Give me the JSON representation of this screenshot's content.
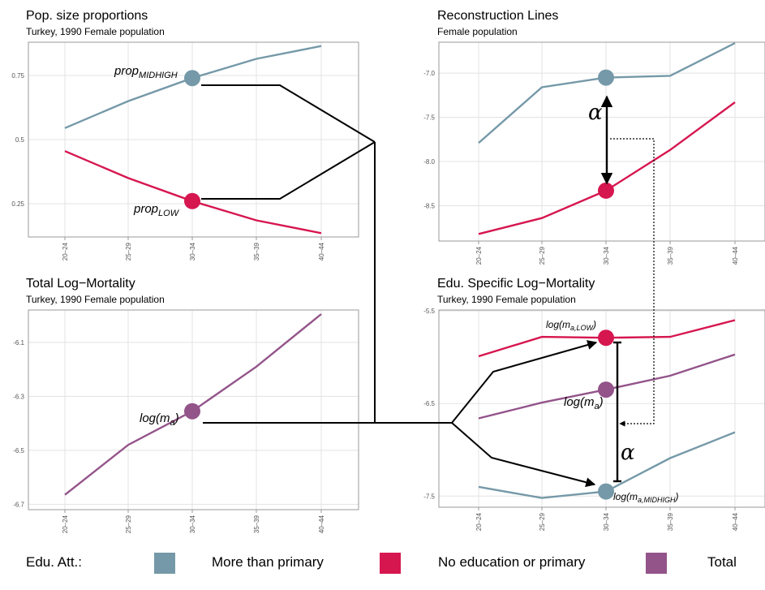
{
  "chart_data": [
    {
      "id": "pop",
      "type": "line",
      "title": "Pop. size proportions",
      "subtitle": "Turkey, 1990 Female population",
      "categories": [
        "20–24",
        "25–29",
        "30–34",
        "35–39",
        "40–44"
      ],
      "ylim": [
        0.12,
        0.88
      ],
      "yticks": [
        0.25,
        0.5,
        0.75
      ],
      "ytick_labels": [
        "0.25",
        "0.5",
        "0.75"
      ],
      "grid": true,
      "series": [
        {
          "key": "midhigh",
          "color": "#7599a8",
          "values": [
            0.545,
            0.65,
            0.74,
            0.815,
            0.865
          ]
        },
        {
          "key": "low",
          "color": "#d6164f",
          "values": [
            0.455,
            0.35,
            0.26,
            0.185,
            0.135
          ]
        }
      ],
      "highlight_index": 2,
      "annotations": {
        "midhigh": "prop_MIDHIGH",
        "low": "prop_LOW"
      }
    },
    {
      "id": "recon",
      "type": "line",
      "title": "Reconstruction Lines",
      "subtitle": "Female population",
      "categories": [
        "20–24",
        "25–29",
        "30–34",
        "35–39",
        "40–44"
      ],
      "ylim": [
        -8.9,
        -6.65
      ],
      "yticks": [
        -7.0,
        -7.5,
        -8.0,
        -8.5
      ],
      "ytick_labels": [
        "-7.0",
        "-7.5",
        "-8.0",
        "-8.5"
      ],
      "grid": true,
      "series": [
        {
          "key": "midhigh",
          "color": "#7599a8",
          "values": [
            -7.79,
            -7.16,
            -7.05,
            -7.03,
            -6.66
          ]
        },
        {
          "key": "low",
          "color": "#d6164f",
          "values": [
            -8.82,
            -8.64,
            -8.33,
            -7.87,
            -7.33
          ]
        }
      ],
      "highlight_index": 2,
      "annotations": {
        "alpha": "α"
      }
    },
    {
      "id": "total",
      "type": "line",
      "title": "Total Log−Mortality",
      "subtitle": "Turkey, 1990 Female population",
      "categories": [
        "20–24",
        "25–29",
        "30–34",
        "35–39",
        "40–44"
      ],
      "ylim": [
        -6.72,
        -5.98
      ],
      "yticks": [
        -6.1,
        -6.3,
        -6.5,
        -6.7
      ],
      "ytick_labels": [
        "-6.1",
        "-6.3",
        "-6.5",
        "-6.7"
      ],
      "grid": true,
      "series": [
        {
          "key": "total",
          "color": "#93548a",
          "values": [
            -6.665,
            -6.48,
            -6.355,
            -6.19,
            -5.995
          ]
        }
      ],
      "highlight_index": 2,
      "annotations": {
        "total": "log(m_a)"
      }
    },
    {
      "id": "edu",
      "type": "line",
      "title": "Edu. Specific Log−Mortality",
      "subtitle": "Turkey, 1990 Female population",
      "categories": [
        "20–24",
        "25–29",
        "30–34",
        "35–39",
        "40–44"
      ],
      "ylim": [
        -7.62,
        -5.49
      ],
      "yticks": [
        -5.5,
        -6.5,
        -7.5
      ],
      "ytick_labels": [
        "-5.5",
        "-6.5",
        "-7.5"
      ],
      "grid": true,
      "series": [
        {
          "key": "low",
          "color": "#d6164f",
          "values": [
            -5.99,
            -5.78,
            -5.79,
            -5.78,
            -5.6
          ]
        },
        {
          "key": "total",
          "color": "#93548a",
          "values": [
            -6.66,
            -6.49,
            -6.35,
            -6.2,
            -5.97
          ]
        },
        {
          "key": "midhigh",
          "color": "#7599a8",
          "values": [
            -7.4,
            -7.52,
            -7.45,
            -7.09,
            -6.81
          ]
        }
      ],
      "highlight_index": 2,
      "annotations": {
        "low": "log(m_a,LOW)",
        "total": "log(m_a)",
        "midhigh": "log(m_a,MIDHIGH)",
        "alpha": "α"
      }
    }
  ],
  "legend": {
    "title": "Edu. Att.:",
    "items": [
      {
        "label": "More than primary",
        "color": "#7599a8"
      },
      {
        "label": "No education or primary",
        "color": "#d6164f"
      },
      {
        "label": "Total",
        "color": "#93548a"
      }
    ]
  }
}
